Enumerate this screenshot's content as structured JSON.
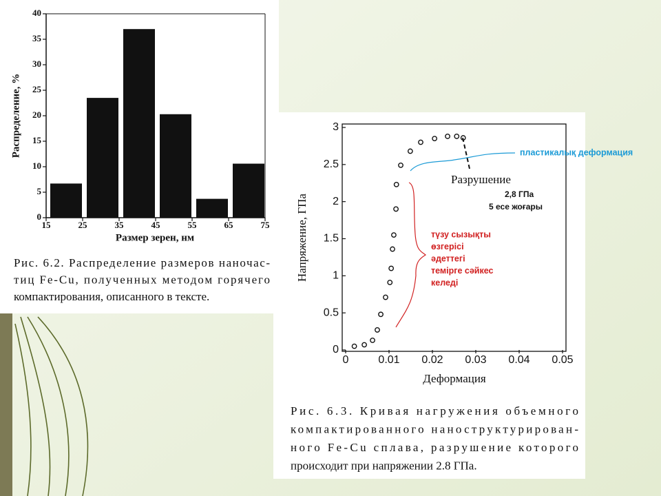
{
  "chart_data": [
    {
      "type": "histogram",
      "bins": [
        15,
        25,
        35,
        45,
        55,
        65,
        75
      ],
      "values": [
        6.7,
        23.5,
        37,
        20.3,
        3.7,
        10.6
      ],
      "color": "#111111",
      "xlabel": "Размер зерен, нм",
      "ylabel": "Распределение, %",
      "xlim": [
        15,
        75
      ],
      "xticks": [
        15,
        25,
        35,
        45,
        55,
        65,
        75
      ],
      "ylim": [
        0,
        40
      ],
      "yticks": [
        0,
        5,
        10,
        15,
        20,
        25,
        30,
        35,
        40
      ],
      "caption_lines": [
        "Рис. 6.2. Распределение размеров наночас-",
        "тиц Fe-Cu, полученных методом горячего",
        "компактирования, описанного в тексте."
      ]
    },
    {
      "type": "scatter",
      "x": [
        0.002,
        0.0043,
        0.0062,
        0.0073,
        0.0081,
        0.0092,
        0.0102,
        0.0105,
        0.0108,
        0.0111,
        0.0116,
        0.0117,
        0.0127,
        0.0149,
        0.0173,
        0.0205,
        0.0235,
        0.0256,
        0.0271
      ],
      "values": [
        0.05,
        0.07,
        0.13,
        0.27,
        0.48,
        0.71,
        0.91,
        1.1,
        1.36,
        1.55,
        1.9,
        2.23,
        2.49,
        2.68,
        2.8,
        2.85,
        2.88,
        2.88,
        2.86
      ],
      "color": "#111111",
      "xlabel": "Деформация",
      "ylabel": "Напряжение, ГПа",
      "xlim": [
        0,
        0.05
      ],
      "xticks": [
        0,
        0.01,
        0.02,
        0.03,
        0.04,
        0.05
      ],
      "ylim": [
        0,
        3
      ],
      "yticks": [
        0,
        0.5,
        1,
        1.5,
        2,
        2.5,
        3
      ],
      "annotations": {
        "fracture": "Разрушение",
        "stress": "2,8 ГПа",
        "times": "5 есе жоғары",
        "plastic": "пластикалық деформация",
        "linear_lines": [
          "түзу сызықты",
          "өзгерісі",
          "әдеттегі",
          "темірге сәйкес",
          "келеді"
        ]
      },
      "caption_lines": [
        "Рис. 6.3. Кривая нагружения объемного",
        "компактированного наноструктурирован-",
        "ного Fe-Cu сплава, разрушение которого",
        "происходит при напряжении 2.8 ГПа."
      ]
    }
  ]
}
